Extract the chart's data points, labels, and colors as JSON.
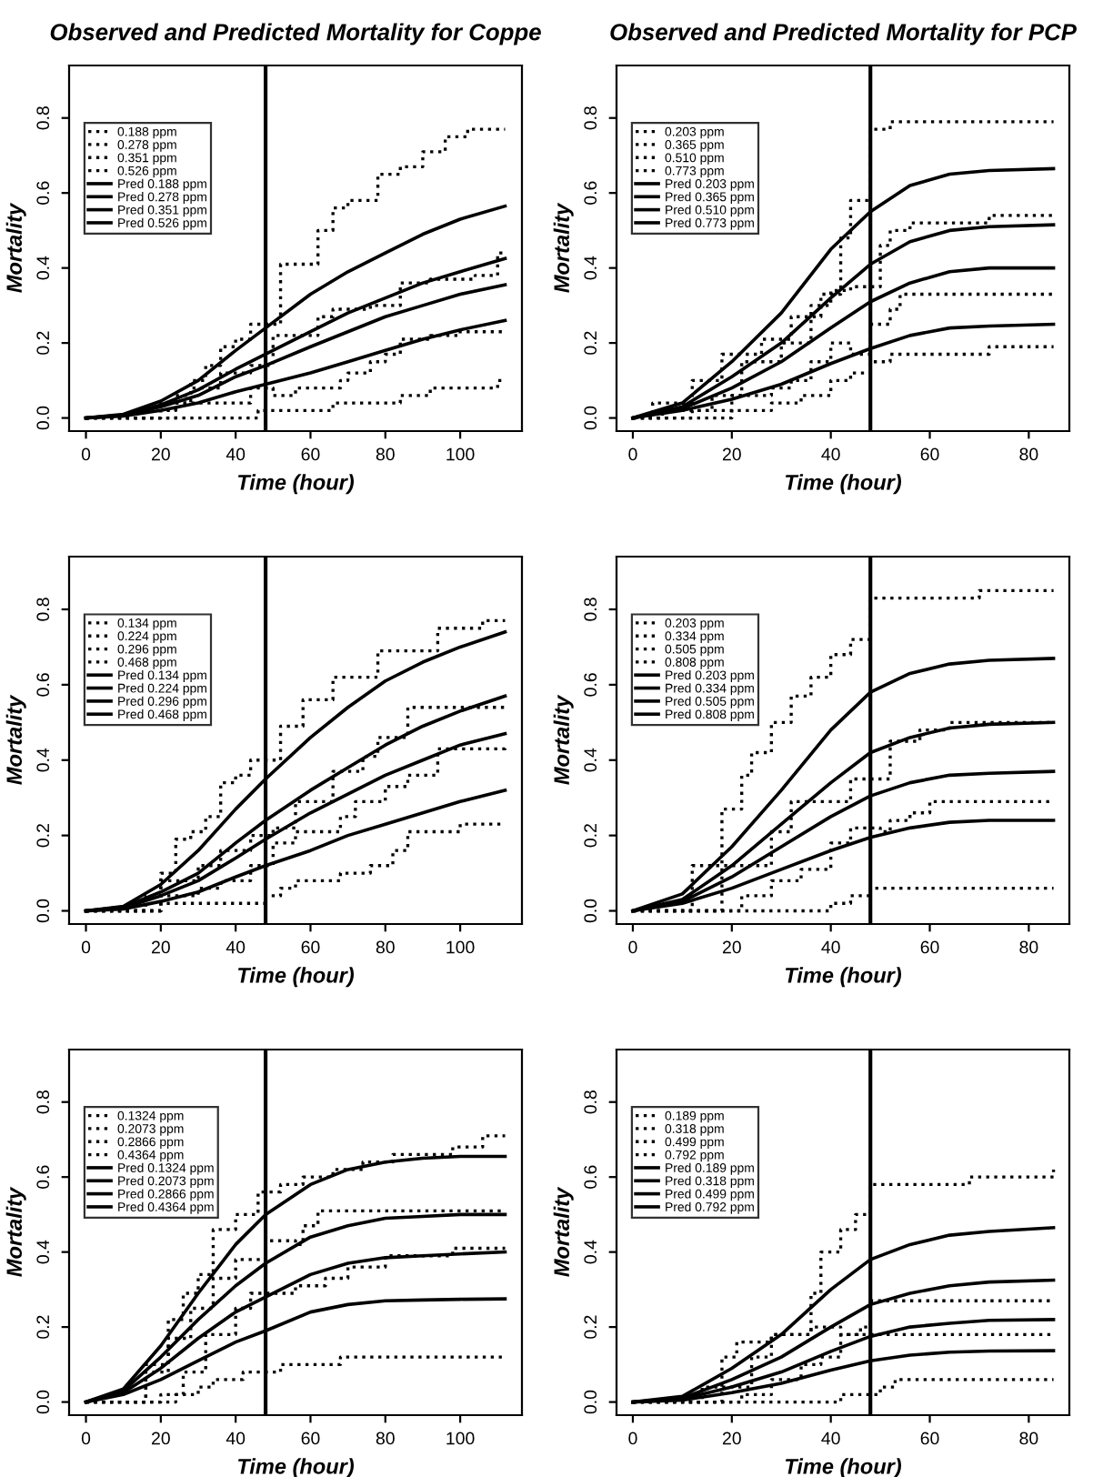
{
  "chart_data": [
    {
      "type": "line",
      "title": "Observed and Predicted Mortality for Coppe",
      "xlabel": "Time (hour)",
      "ylabel": "Mortality",
      "xlim": [
        -4.5,
        116.5
      ],
      "ylim": [
        -0.035,
        0.94
      ],
      "xticks": [
        0,
        20,
        40,
        60,
        80,
        100
      ],
      "yticks": [
        {
          "value": 0,
          "label": "0.0"
        },
        {
          "value": 0.2,
          "label": "0.2"
        },
        {
          "value": 0.4,
          "label": "0.4"
        },
        {
          "value": 0.6,
          "label": "0.6"
        },
        {
          "value": 0.8,
          "label": "0.8"
        }
      ],
      "ref_lines": [
        {
          "axis": "x",
          "value": 48,
          "color": "#000000"
        }
      ],
      "legend": "top left",
      "series": [
        {
          "name": "0.188 ppm",
          "type": "step",
          "line_style": "dotted",
          "color": "#000000",
          "x": [
            0,
            46,
            66,
            84,
            92,
            110,
            112
          ],
          "values": [
            0,
            0.02,
            0.04,
            0.06,
            0.08,
            0.1,
            0.1
          ]
        },
        {
          "name": "0.278 ppm",
          "type": "step",
          "line_style": "dotted",
          "color": "#000000",
          "x": [
            0,
            24,
            44,
            50,
            56,
            68,
            70,
            76,
            80,
            84,
            92,
            100,
            112
          ],
          "values": [
            0,
            0.04,
            0.08,
            0.06,
            0.08,
            0.1,
            0.12,
            0.15,
            0.17,
            0.21,
            0.22,
            0.23,
            0.23
          ]
        },
        {
          "name": "0.351 ppm",
          "type": "step",
          "line_style": "dotted",
          "color": "#000000",
          "x": [
            0,
            20,
            28,
            36,
            44,
            50,
            62,
            66,
            76,
            84,
            92,
            104,
            110,
            112
          ],
          "values": [
            0,
            0.04,
            0.08,
            0.12,
            0.14,
            0.22,
            0.27,
            0.29,
            0.3,
            0.36,
            0.37,
            0.38,
            0.44,
            0.44
          ]
        },
        {
          "name": "0.526 ppm",
          "type": "step",
          "line_style": "dotted",
          "color": "#000000",
          "x": [
            0,
            16,
            24,
            28,
            32,
            36,
            40,
            44,
            52,
            62,
            66,
            70,
            78,
            84,
            90,
            96,
            102,
            112
          ],
          "values": [
            0,
            0.02,
            0.06,
            0.1,
            0.14,
            0.19,
            0.21,
            0.25,
            0.41,
            0.5,
            0.56,
            0.58,
            0.65,
            0.67,
            0.71,
            0.75,
            0.77,
            0.77
          ]
        },
        {
          "name": "Pred 0.188 ppm",
          "type": "line",
          "line_style": "solid",
          "color": "#000000",
          "x": [
            0,
            10,
            20,
            30,
            40,
            48,
            60,
            70,
            80,
            90,
            100,
            112
          ],
          "values": [
            0,
            0.005,
            0.02,
            0.04,
            0.07,
            0.09,
            0.12,
            0.15,
            0.18,
            0.21,
            0.235,
            0.26
          ]
        },
        {
          "name": "Pred 0.278 ppm",
          "type": "line",
          "line_style": "solid",
          "color": "#000000",
          "x": [
            0,
            10,
            20,
            30,
            40,
            48,
            60,
            70,
            80,
            90,
            100,
            112
          ],
          "values": [
            0,
            0.007,
            0.03,
            0.06,
            0.11,
            0.14,
            0.19,
            0.23,
            0.27,
            0.3,
            0.33,
            0.355
          ]
        },
        {
          "name": "Pred 0.351 ppm",
          "type": "line",
          "line_style": "solid",
          "color": "#000000",
          "x": [
            0,
            10,
            20,
            30,
            40,
            48,
            60,
            70,
            80,
            90,
            100,
            112
          ],
          "values": [
            0,
            0.008,
            0.035,
            0.075,
            0.13,
            0.17,
            0.23,
            0.28,
            0.32,
            0.36,
            0.39,
            0.425
          ]
        },
        {
          "name": "Pred 0.526 ppm",
          "type": "line",
          "line_style": "solid",
          "color": "#000000",
          "x": [
            0,
            10,
            20,
            30,
            40,
            48,
            60,
            70,
            80,
            90,
            100,
            112
          ],
          "values": [
            0,
            0.01,
            0.045,
            0.1,
            0.18,
            0.24,
            0.33,
            0.39,
            0.44,
            0.49,
            0.53,
            0.565
          ]
        }
      ]
    },
    {
      "type": "line",
      "title": "Observed and Predicted Mortality for PCP",
      "xlabel": "Time (hour)",
      "ylabel": "Mortality",
      "xlim": [
        -3.3,
        88.2
      ],
      "ylim": [
        -0.035,
        0.94
      ],
      "xticks": [
        0,
        20,
        40,
        60,
        80
      ],
      "yticks": [
        {
          "value": 0,
          "label": "0.0"
        },
        {
          "value": 0.2,
          "label": "0.2"
        },
        {
          "value": 0.4,
          "label": "0.4"
        },
        {
          "value": 0.6,
          "label": "0.6"
        },
        {
          "value": 0.8,
          "label": "0.8"
        }
      ],
      "ref_lines": [
        {
          "axis": "x",
          "value": 48,
          "color": "#000000"
        }
      ],
      "legend": "top left",
      "series": [
        {
          "name": "0.203 ppm",
          "type": "step",
          "line_style": "dotted",
          "color": "#000000",
          "x": [
            0,
            20,
            28,
            34,
            40,
            44,
            48,
            52,
            72,
            85
          ],
          "values": [
            0,
            0.02,
            0.04,
            0.06,
            0.1,
            0.12,
            0.15,
            0.17,
            0.19,
            0.19
          ]
        },
        {
          "name": "0.365 ppm",
          "type": "step",
          "line_style": "dotted",
          "color": "#000000",
          "x": [
            0,
            12,
            20,
            28,
            32,
            36,
            40,
            44,
            48,
            52,
            54,
            85
          ],
          "values": [
            0,
            0.02,
            0.06,
            0.08,
            0.1,
            0.15,
            0.2,
            0.17,
            0.25,
            0.29,
            0.33,
            0.33
          ]
        },
        {
          "name": "0.510 ppm",
          "type": "step",
          "line_style": "dotted",
          "color": "#000000",
          "x": [
            0,
            6,
            16,
            22,
            30,
            36,
            40,
            44,
            50,
            52,
            56,
            72,
            85
          ],
          "values": [
            0,
            0.02,
            0.06,
            0.15,
            0.2,
            0.3,
            0.34,
            0.35,
            0.46,
            0.5,
            0.52,
            0.54,
            0.54
          ]
        },
        {
          "name": "0.773 ppm",
          "type": "step",
          "line_style": "dotted",
          "color": "#000000",
          "x": [
            0,
            4,
            12,
            18,
            26,
            32,
            38,
            42,
            44,
            48,
            52,
            85
          ],
          "values": [
            0,
            0.04,
            0.1,
            0.17,
            0.21,
            0.27,
            0.33,
            0.48,
            0.58,
            0.77,
            0.79,
            0.79
          ]
        },
        {
          "name": "Pred 0.203 ppm",
          "type": "line",
          "line_style": "solid",
          "color": "#000000",
          "x": [
            0,
            10,
            20,
            30,
            40,
            48,
            56,
            64,
            72,
            85
          ],
          "values": [
            0,
            0.02,
            0.05,
            0.09,
            0.145,
            0.185,
            0.22,
            0.24,
            0.245,
            0.25
          ]
        },
        {
          "name": "Pred 0.365 ppm",
          "type": "line",
          "line_style": "solid",
          "color": "#000000",
          "x": [
            0,
            10,
            20,
            30,
            40,
            48,
            56,
            64,
            72,
            85
          ],
          "values": [
            0,
            0.025,
            0.08,
            0.15,
            0.24,
            0.31,
            0.36,
            0.39,
            0.4,
            0.4
          ]
        },
        {
          "name": "Pred 0.510 ppm",
          "type": "line",
          "line_style": "solid",
          "color": "#000000",
          "x": [
            0,
            10,
            20,
            30,
            40,
            48,
            56,
            64,
            72,
            85
          ],
          "values": [
            0,
            0.03,
            0.11,
            0.2,
            0.32,
            0.41,
            0.47,
            0.5,
            0.51,
            0.515
          ]
        },
        {
          "name": "Pred 0.773 ppm",
          "type": "line",
          "line_style": "solid",
          "color": "#000000",
          "x": [
            0,
            10,
            20,
            30,
            40,
            48,
            56,
            64,
            72,
            85
          ],
          "values": [
            0,
            0.04,
            0.15,
            0.28,
            0.45,
            0.55,
            0.62,
            0.65,
            0.66,
            0.665
          ]
        }
      ]
    },
    {
      "type": "line",
      "xlabel": "Time (hour)",
      "ylabel": "Mortality",
      "xlim": [
        -4.5,
        116.5
      ],
      "ylim": [
        -0.035,
        0.94
      ],
      "xticks": [
        0,
        20,
        40,
        60,
        80,
        100
      ],
      "yticks": [
        {
          "value": 0,
          "label": "0.0"
        },
        {
          "value": 0.2,
          "label": "0.2"
        },
        {
          "value": 0.4,
          "label": "0.4"
        },
        {
          "value": 0.6,
          "label": "0.6"
        },
        {
          "value": 0.8,
          "label": "0.8"
        }
      ],
      "ref_lines": [
        {
          "axis": "x",
          "value": 48,
          "color": "#000000"
        }
      ],
      "legend": "top left",
      "series": [
        {
          "name": "0.134 ppm",
          "type": "step",
          "line_style": "dotted",
          "color": "#000000",
          "x": [
            0,
            20,
            48,
            52,
            56,
            68,
            76,
            82,
            86,
            100,
            112
          ],
          "values": [
            0,
            0.02,
            0.04,
            0.06,
            0.08,
            0.1,
            0.12,
            0.16,
            0.21,
            0.23,
            0.23
          ]
        },
        {
          "name": "0.224 ppm",
          "type": "step",
          "line_style": "dotted",
          "color": "#000000",
          "x": [
            0,
            16,
            30,
            36,
            44,
            50,
            56,
            68,
            72,
            80,
            86,
            94,
            112
          ],
          "values": [
            0,
            0.04,
            0.06,
            0.08,
            0.12,
            0.18,
            0.21,
            0.25,
            0.29,
            0.33,
            0.36,
            0.43,
            0.44
          ]
        },
        {
          "name": "0.296 ppm",
          "type": "step",
          "line_style": "dotted",
          "color": "#000000",
          "x": [
            0,
            20,
            30,
            36,
            44,
            50,
            56,
            66,
            74,
            78,
            86,
            112
          ],
          "values": [
            0,
            0.08,
            0.12,
            0.16,
            0.2,
            0.22,
            0.29,
            0.37,
            0.41,
            0.46,
            0.54,
            0.54
          ]
        },
        {
          "name": "0.468 ppm",
          "type": "step",
          "line_style": "dotted",
          "color": "#000000",
          "x": [
            0,
            20,
            24,
            28,
            32,
            36,
            40,
            44,
            52,
            58,
            66,
            78,
            94,
            106,
            112
          ],
          "values": [
            0,
            0.1,
            0.19,
            0.21,
            0.25,
            0.34,
            0.36,
            0.4,
            0.49,
            0.56,
            0.62,
            0.69,
            0.75,
            0.77,
            0.77
          ]
        },
        {
          "name": "Pred 0.134 ppm",
          "type": "line",
          "line_style": "solid",
          "color": "#000000",
          "x": [
            0,
            10,
            20,
            30,
            40,
            48,
            60,
            70,
            80,
            90,
            100,
            112
          ],
          "values": [
            0,
            0.005,
            0.025,
            0.05,
            0.09,
            0.12,
            0.16,
            0.2,
            0.23,
            0.26,
            0.29,
            0.32
          ]
        },
        {
          "name": "Pred 0.224 ppm",
          "type": "line",
          "line_style": "solid",
          "color": "#000000",
          "x": [
            0,
            10,
            20,
            30,
            40,
            48,
            60,
            70,
            80,
            90,
            100,
            112
          ],
          "values": [
            0,
            0.008,
            0.04,
            0.08,
            0.14,
            0.19,
            0.26,
            0.31,
            0.36,
            0.4,
            0.44,
            0.47
          ]
        },
        {
          "name": "Pred 0.296 ppm",
          "type": "line",
          "line_style": "solid",
          "color": "#000000",
          "x": [
            0,
            10,
            20,
            30,
            40,
            48,
            60,
            70,
            80,
            90,
            100,
            112
          ],
          "values": [
            0,
            0.01,
            0.05,
            0.1,
            0.18,
            0.24,
            0.32,
            0.38,
            0.44,
            0.49,
            0.53,
            0.57
          ]
        },
        {
          "name": "Pred 0.468 ppm",
          "type": "line",
          "line_style": "solid",
          "color": "#000000",
          "x": [
            0,
            10,
            20,
            30,
            40,
            48,
            60,
            70,
            80,
            90,
            100,
            112
          ],
          "values": [
            0,
            0.012,
            0.07,
            0.16,
            0.27,
            0.35,
            0.46,
            0.54,
            0.61,
            0.66,
            0.7,
            0.74
          ]
        }
      ]
    },
    {
      "type": "line",
      "xlabel": "Time (hour)",
      "ylabel": "Mortality",
      "xlim": [
        -3.3,
        88.2
      ],
      "ylim": [
        -0.035,
        0.94
      ],
      "xticks": [
        0,
        20,
        40,
        60,
        80
      ],
      "yticks": [
        {
          "value": 0,
          "label": "0.0"
        },
        {
          "value": 0.2,
          "label": "0.2"
        },
        {
          "value": 0.4,
          "label": "0.4"
        },
        {
          "value": 0.6,
          "label": "0.6"
        },
        {
          "value": 0.8,
          "label": "0.8"
        }
      ],
      "ref_lines": [
        {
          "axis": "x",
          "value": 48,
          "color": "#000000"
        }
      ],
      "legend": "top left",
      "series": [
        {
          "name": "0.203 ppm",
          "type": "step",
          "line_style": "dotted",
          "color": "#000000",
          "x": [
            0,
            40,
            44,
            48,
            85
          ],
          "values": [
            0,
            0.02,
            0.04,
            0.06,
            0.06
          ]
        },
        {
          "name": "0.334 ppm",
          "type": "step",
          "line_style": "dotted",
          "color": "#000000",
          "x": [
            0,
            22,
            28,
            34,
            40,
            44,
            50,
            52,
            56,
            60,
            85
          ],
          "values": [
            0,
            0.04,
            0.08,
            0.11,
            0.18,
            0.22,
            0.21,
            0.24,
            0.26,
            0.29,
            0.29
          ]
        },
        {
          "name": "0.505 ppm",
          "type": "step",
          "line_style": "dotted",
          "color": "#000000",
          "x": [
            0,
            18,
            28,
            32,
            44,
            52,
            58,
            64,
            85
          ],
          "values": [
            0,
            0.12,
            0.21,
            0.29,
            0.35,
            0.45,
            0.48,
            0.5,
            0.5
          ]
        },
        {
          "name": "0.808 ppm",
          "type": "step",
          "line_style": "dotted",
          "color": "#000000",
          "x": [
            0,
            12,
            18,
            22,
            24,
            28,
            32,
            36,
            40,
            44,
            48,
            70,
            85
          ],
          "values": [
            0,
            0.12,
            0.27,
            0.36,
            0.42,
            0.5,
            0.57,
            0.62,
            0.68,
            0.72,
            0.83,
            0.85,
            0.85
          ]
        },
        {
          "name": "Pred 0.203 ppm",
          "type": "line",
          "line_style": "solid",
          "color": "#000000",
          "x": [
            0,
            10,
            20,
            30,
            40,
            48,
            56,
            64,
            72,
            85
          ],
          "values": [
            0,
            0.02,
            0.06,
            0.11,
            0.16,
            0.195,
            0.22,
            0.235,
            0.24,
            0.24
          ]
        },
        {
          "name": "Pred 0.334 ppm",
          "type": "line",
          "line_style": "solid",
          "color": "#000000",
          "x": [
            0,
            10,
            20,
            30,
            40,
            48,
            56,
            64,
            72,
            85
          ],
          "values": [
            0,
            0.025,
            0.09,
            0.17,
            0.25,
            0.305,
            0.34,
            0.36,
            0.365,
            0.37
          ]
        },
        {
          "name": "Pred 0.505 ppm",
          "type": "line",
          "line_style": "solid",
          "color": "#000000",
          "x": [
            0,
            10,
            20,
            30,
            40,
            48,
            56,
            64,
            72,
            85
          ],
          "values": [
            0,
            0.03,
            0.12,
            0.23,
            0.34,
            0.42,
            0.46,
            0.485,
            0.495,
            0.5
          ]
        },
        {
          "name": "Pred 0.808 ppm",
          "type": "line",
          "line_style": "solid",
          "color": "#000000",
          "x": [
            0,
            10,
            20,
            30,
            40,
            48,
            56,
            64,
            72,
            85
          ],
          "values": [
            0,
            0.045,
            0.17,
            0.32,
            0.48,
            0.58,
            0.63,
            0.655,
            0.665,
            0.67
          ]
        }
      ]
    },
    {
      "type": "line",
      "xlabel": "Time (hour)",
      "ylabel": "Mortality",
      "xlim": [
        -4.5,
        116.5
      ],
      "ylim": [
        -0.035,
        0.94
      ],
      "xticks": [
        0,
        20,
        40,
        60,
        80,
        100
      ],
      "yticks": [
        {
          "value": 0,
          "label": "0.0"
        },
        {
          "value": 0.2,
          "label": "0.2"
        },
        {
          "value": 0.4,
          "label": "0.4"
        },
        {
          "value": 0.6,
          "label": "0.6"
        },
        {
          "value": 0.8,
          "label": "0.8"
        }
      ],
      "ref_lines": [
        {
          "axis": "x",
          "value": 48,
          "color": "#000000"
        }
      ],
      "legend": "top left",
      "series": [
        {
          "name": "0.1324 ppm",
          "type": "step",
          "line_style": "dotted",
          "color": "#000000",
          "x": [
            0,
            24,
            30,
            34,
            42,
            52,
            68,
            112
          ],
          "values": [
            0,
            0.02,
            0.04,
            0.06,
            0.08,
            0.1,
            0.12,
            0.12
          ]
        },
        {
          "name": "0.2073 ppm",
          "type": "step",
          "line_style": "dotted",
          "color": "#000000",
          "x": [
            0,
            20,
            26,
            32,
            40,
            44,
            56,
            64,
            70,
            80,
            98,
            112
          ],
          "values": [
            0,
            0.02,
            0.08,
            0.18,
            0.25,
            0.29,
            0.31,
            0.33,
            0.36,
            0.39,
            0.41,
            0.41
          ]
        },
        {
          "name": "0.2866 ppm",
          "type": "step",
          "line_style": "dotted",
          "color": "#000000",
          "x": [
            0,
            16,
            22,
            28,
            34,
            40,
            48,
            56,
            58,
            62,
            112
          ],
          "values": [
            0,
            0.08,
            0.17,
            0.25,
            0.33,
            0.38,
            0.43,
            0.42,
            0.47,
            0.51,
            0.51
          ]
        },
        {
          "name": "0.4364 ppm",
          "type": "step",
          "line_style": "dotted",
          "color": "#000000",
          "x": [
            0,
            16,
            22,
            26,
            30,
            34,
            40,
            46,
            52,
            58,
            66,
            74,
            82,
            98,
            106,
            112
          ],
          "values": [
            0,
            0.1,
            0.22,
            0.29,
            0.34,
            0.46,
            0.5,
            0.56,
            0.58,
            0.6,
            0.62,
            0.64,
            0.66,
            0.68,
            0.71,
            0.71
          ]
        },
        {
          "name": "Pred 0.1324 ppm",
          "type": "line",
          "line_style": "solid",
          "color": "#000000",
          "x": [
            0,
            10,
            20,
            30,
            40,
            48,
            60,
            70,
            80,
            90,
            100,
            112
          ],
          "values": [
            0,
            0.02,
            0.06,
            0.11,
            0.16,
            0.19,
            0.24,
            0.26,
            0.27,
            0.272,
            0.274,
            0.275
          ]
        },
        {
          "name": "Pred 0.2073 ppm",
          "type": "line",
          "line_style": "solid",
          "color": "#000000",
          "x": [
            0,
            10,
            20,
            30,
            40,
            48,
            60,
            70,
            80,
            90,
            100,
            112
          ],
          "values": [
            0,
            0.025,
            0.09,
            0.17,
            0.24,
            0.28,
            0.34,
            0.37,
            0.385,
            0.39,
            0.395,
            0.4
          ]
        },
        {
          "name": "Pred 0.2866 ppm",
          "type": "line",
          "line_style": "solid",
          "color": "#000000",
          "x": [
            0,
            10,
            20,
            30,
            40,
            48,
            60,
            70,
            80,
            90,
            100,
            112
          ],
          "values": [
            0,
            0.03,
            0.12,
            0.22,
            0.31,
            0.37,
            0.44,
            0.47,
            0.49,
            0.495,
            0.5,
            0.5
          ]
        },
        {
          "name": "Pred 0.4364 ppm",
          "type": "line",
          "line_style": "solid",
          "color": "#000000",
          "x": [
            0,
            10,
            20,
            30,
            40,
            48,
            60,
            70,
            80,
            90,
            100,
            112
          ],
          "values": [
            0,
            0.035,
            0.15,
            0.29,
            0.42,
            0.5,
            0.58,
            0.62,
            0.64,
            0.65,
            0.655,
            0.655
          ]
        }
      ]
    },
    {
      "type": "line",
      "xlabel": "Time (hour)",
      "ylabel": "Mortality",
      "xlim": [
        -3.3,
        88.2
      ],
      "ylim": [
        -0.035,
        0.94
      ],
      "xticks": [
        0,
        20,
        40,
        60,
        80
      ],
      "yticks": [
        {
          "value": 0,
          "label": "0.0"
        },
        {
          "value": 0.2,
          "label": "0.2"
        },
        {
          "value": 0.4,
          "label": "0.4"
        },
        {
          "value": 0.6,
          "label": "0.6"
        },
        {
          "value": 0.8,
          "label": "0.8"
        }
      ],
      "ref_lines": [
        {
          "axis": "x",
          "value": 48,
          "color": "#000000"
        }
      ],
      "legend": "top left",
      "series": [
        {
          "name": "0.189 ppm",
          "type": "step",
          "line_style": "dotted",
          "color": "#000000",
          "x": [
            0,
            42,
            50,
            53,
            85
          ],
          "values": [
            0,
            0.02,
            0.04,
            0.06,
            0.06
          ]
        },
        {
          "name": "0.318 ppm",
          "type": "step",
          "line_style": "dotted",
          "color": "#000000",
          "x": [
            0,
            22,
            28,
            34,
            38,
            42,
            85
          ],
          "values": [
            0,
            0.02,
            0.06,
            0.1,
            0.12,
            0.18,
            0.18
          ]
        },
        {
          "name": "0.499 ppm",
          "type": "step",
          "line_style": "dotted",
          "color": "#000000",
          "x": [
            0,
            18,
            24,
            28,
            36,
            42,
            46,
            48,
            85
          ],
          "values": [
            0,
            0.04,
            0.12,
            0.18,
            0.2,
            0.18,
            0.2,
            0.27,
            0.27
          ]
        },
        {
          "name": "0.792 ppm",
          "type": "step",
          "line_style": "dotted",
          "color": "#000000",
          "x": [
            0,
            14,
            18,
            21,
            28,
            36,
            38,
            42,
            45,
            48,
            68,
            85
          ],
          "values": [
            0,
            0.04,
            0.12,
            0.16,
            0.18,
            0.29,
            0.4,
            0.46,
            0.5,
            0.58,
            0.6,
            0.62
          ]
        },
        {
          "name": "Pred 0.189 ppm",
          "type": "line",
          "line_style": "solid",
          "color": "#000000",
          "x": [
            0,
            10,
            20,
            30,
            40,
            48,
            56,
            64,
            72,
            85
          ],
          "values": [
            0,
            0.005,
            0.025,
            0.05,
            0.085,
            0.11,
            0.125,
            0.133,
            0.136,
            0.137
          ]
        },
        {
          "name": "Pred 0.318 ppm",
          "type": "line",
          "line_style": "solid",
          "color": "#000000",
          "x": [
            0,
            10,
            20,
            30,
            40,
            48,
            56,
            64,
            72,
            85
          ],
          "values": [
            0,
            0.008,
            0.04,
            0.08,
            0.135,
            0.175,
            0.2,
            0.21,
            0.218,
            0.22
          ]
        },
        {
          "name": "Pred 0.499 ppm",
          "type": "line",
          "line_style": "solid",
          "color": "#000000",
          "x": [
            0,
            10,
            20,
            30,
            40,
            48,
            56,
            64,
            72,
            85
          ],
          "values": [
            0,
            0.01,
            0.06,
            0.12,
            0.2,
            0.26,
            0.29,
            0.31,
            0.32,
            0.325
          ]
        },
        {
          "name": "Pred 0.792 ppm",
          "type": "line",
          "line_style": "solid",
          "color": "#000000",
          "x": [
            0,
            10,
            20,
            30,
            40,
            48,
            56,
            64,
            72,
            85
          ],
          "values": [
            0,
            0.015,
            0.09,
            0.18,
            0.3,
            0.38,
            0.42,
            0.445,
            0.455,
            0.465
          ]
        }
      ]
    }
  ]
}
